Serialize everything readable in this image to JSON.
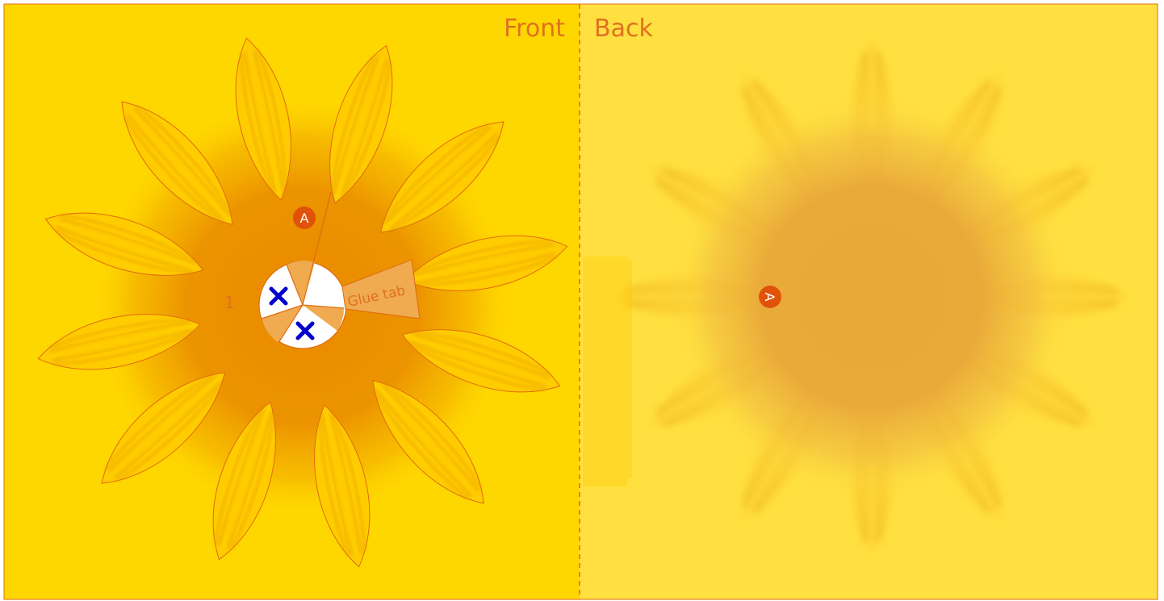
{
  "labels": {
    "front": "Front",
    "back": "Back",
    "glue_tab": "Glue tab",
    "marker_a": "A",
    "number_one": "1"
  },
  "colors": {
    "front_bg": "#FFD700",
    "back_bg": "#FFE040",
    "outline": "#E06A10",
    "label": "#E07020",
    "center": "#E88A00",
    "badge": "#E0520A",
    "cross": "#0000CC",
    "tab": "#F0AA50"
  },
  "icons": {
    "cut_mark": "cross-icon"
  }
}
